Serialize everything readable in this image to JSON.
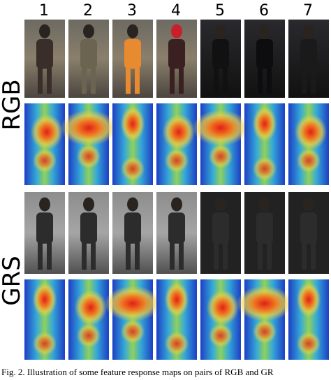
{
  "figure": {
    "column_labels": [
      "1",
      "2",
      "3",
      "4",
      "5",
      "6",
      "7"
    ],
    "row_labels": [
      "RGB",
      "GRS"
    ],
    "caption": "Fig. 2.   Illustration of some feature response maps on pairs of RGB and GR"
  }
}
